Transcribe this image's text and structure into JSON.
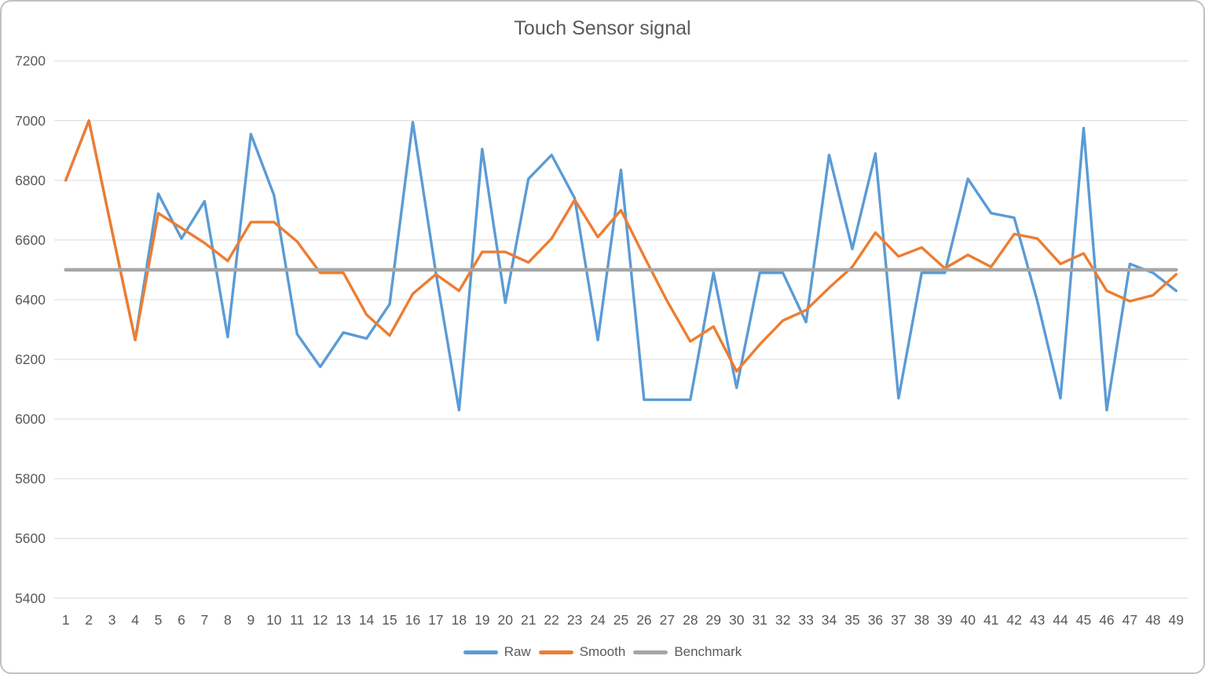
{
  "window": {
    "title": "Touch Sensor signal"
  },
  "chart_data": {
    "type": "line",
    "title": "Touch Sensor signal",
    "title_color": "#595959",
    "categories": [
      1,
      2,
      3,
      4,
      5,
      6,
      7,
      8,
      9,
      10,
      11,
      12,
      13,
      14,
      15,
      16,
      17,
      18,
      19,
      20,
      21,
      22,
      23,
      24,
      25,
      26,
      27,
      28,
      29,
      30,
      31,
      32,
      33,
      34,
      35,
      36,
      37,
      38,
      39,
      40,
      41,
      42,
      43,
      44,
      45,
      46,
      47,
      48,
      49
    ],
    "series": [
      {
        "name": "Raw",
        "color": "#5B9BD5",
        "values": [
          6800,
          7000,
          6630,
          6265,
          6755,
          6605,
          6730,
          6275,
          6955,
          6750,
          6285,
          6175,
          6290,
          6270,
          6385,
          6995,
          6490,
          6030,
          6905,
          6390,
          6805,
          6885,
          6740,
          6265,
          6835,
          6065,
          6065,
          6065,
          6490,
          6105,
          6490,
          6490,
          6325,
          6885,
          6570,
          6890,
          6070,
          6490,
          6490,
          6805,
          6690,
          6675,
          6395,
          6070,
          6975,
          6030,
          6520,
          6490,
          6430
        ]
      },
      {
        "name": "Smooth",
        "color": "#ED7D31",
        "values": [
          6800,
          7000,
          6630,
          6265,
          6690,
          6640,
          6590,
          6530,
          6660,
          6660,
          6595,
          6490,
          6490,
          6350,
          6280,
          6420,
          6485,
          6430,
          6560,
          6560,
          6525,
          6605,
          6735,
          6610,
          6700,
          6545,
          6395,
          6260,
          6310,
          6160,
          6250,
          6330,
          6365,
          6440,
          6510,
          6625,
          6545,
          6575,
          6505,
          6550,
          6510,
          6620,
          6605,
          6520,
          6555,
          6430,
          6395,
          6415,
          6485
        ]
      },
      {
        "name": "Benchmark",
        "color": "#A6A6A6",
        "constant": 6500
      }
    ],
    "ylim": [
      5400,
      7200
    ],
    "ytick_step": 200,
    "ytick_labels": [
      "7200",
      "7000",
      "6800",
      "6600",
      "6400",
      "6200",
      "6000",
      "5800",
      "5600",
      "5400"
    ],
    "grid": true,
    "gridline_color": "#D9D9D9",
    "axis_text_color": "#595959",
    "legend_position": "bottom",
    "legend": [
      "Raw",
      "Smooth",
      "Benchmark"
    ]
  }
}
